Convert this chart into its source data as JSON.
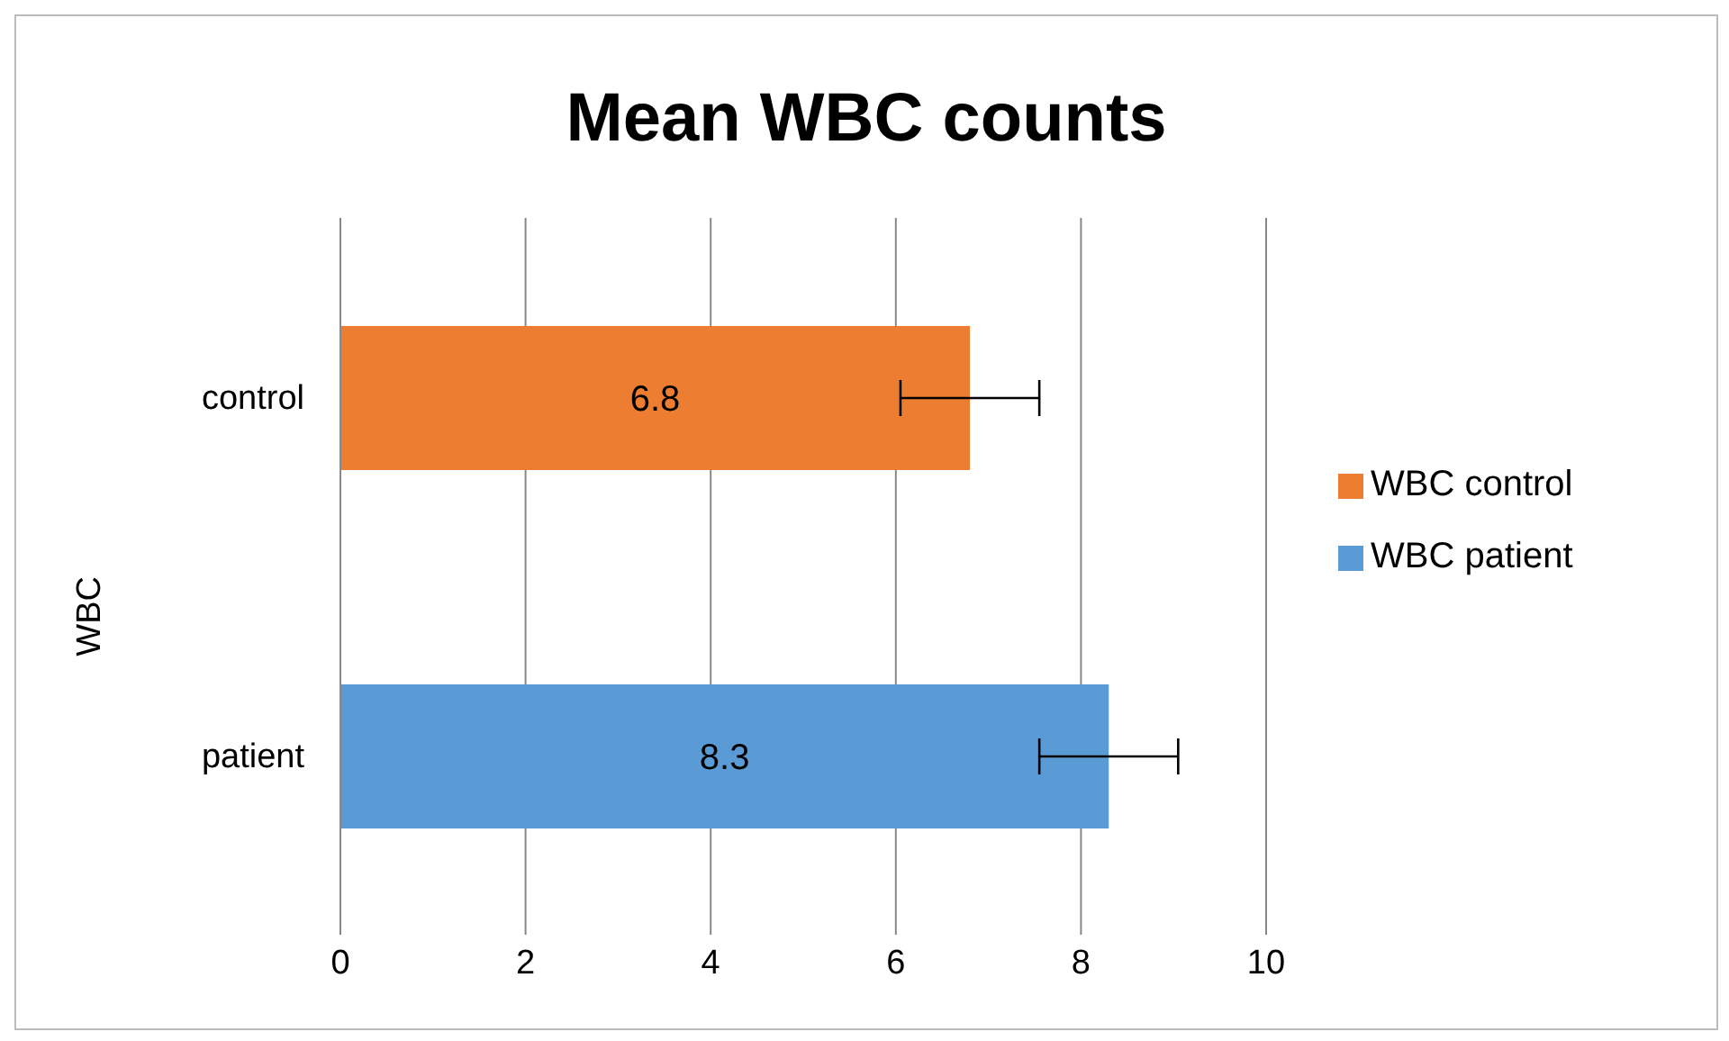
{
  "chart_data": {
    "type": "bar",
    "orientation": "horizontal",
    "title": "Mean WBC counts",
    "ylabel": "WBC",
    "categories": [
      "control",
      "patient"
    ],
    "series": [
      {
        "name": "WBC patient",
        "color": "#5b9bd5",
        "values": [
          null,
          8.3
        ],
        "errors": [
          null,
          0.75
        ]
      },
      {
        "name": "WBC control",
        "color": "#ed7d31",
        "values": [
          6.8,
          null
        ],
        "errors": [
          0.75,
          null
        ]
      }
    ],
    "xlim": [
      0,
      10
    ],
    "xticks": [
      0,
      2,
      4,
      6,
      8,
      10
    ],
    "grid": "x",
    "legend": "right",
    "data_labels": true
  }
}
